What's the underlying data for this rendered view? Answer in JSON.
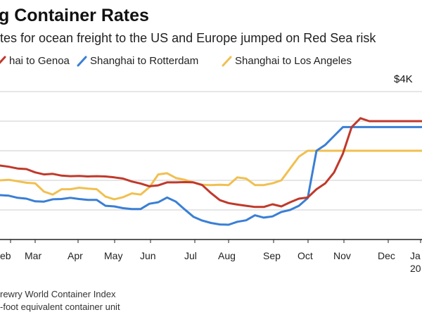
{
  "title": "g Container Rates",
  "subtitle": "tes for ocean freight to the US and Europe jumped on Red Sea risk",
  "colors": {
    "genoa": "#c0392b",
    "rotterdam": "#3a7fd5",
    "los_angeles": "#f0c050",
    "grid": "#dddddd"
  },
  "legend": [
    {
      "label": "hai to Genoa",
      "color": "#c0392b"
    },
    {
      "label": "Shanghai to Rotterdam",
      "color": "#3a7fd5"
    },
    {
      "label": "Shanghai to Los Angeles",
      "color": "#f0c050"
    }
  ],
  "footnote": {
    "line1": "rewry World Container Index",
    "line2": "-foot equivalent container unit"
  },
  "chart_data": {
    "type": "line",
    "title": "g Container Rates",
    "subtitle": "tes for ocean freight to the US and Europe jumped on Red Sea risk",
    "annotation": "$4K",
    "x_tick_labels": [
      "eb",
      "Mar",
      "Apr",
      "May",
      "Jun",
      "Jul",
      "Aug",
      "Sep",
      "Oct",
      "Nov",
      "Dec",
      "Ja",
      "20"
    ],
    "ylim": [
      0,
      5000
    ],
    "grid": true,
    "legend_placement": "top",
    "x": [
      0,
      1,
      2,
      3,
      4,
      5,
      6,
      7,
      8,
      9,
      10,
      11,
      12,
      13,
      14,
      15,
      16,
      17,
      18,
      19,
      20,
      21,
      22,
      23,
      24,
      25,
      26,
      27,
      28,
      29,
      30,
      31,
      32,
      33,
      34,
      35,
      36,
      37,
      38,
      39,
      40,
      41,
      42,
      43,
      44,
      45,
      46,
      47,
      48
    ],
    "series": [
      {
        "name": "hai to Genoa",
        "color": "#c0392b",
        "values": [
          2500,
          2460,
          2400,
          2380,
          2270,
          2200,
          2220,
          2160,
          2140,
          2150,
          2130,
          2140,
          2130,
          2100,
          2060,
          1960,
          1890,
          1800,
          1830,
          1930,
          1930,
          1940,
          1930,
          1840,
          1570,
          1330,
          1230,
          1180,
          1140,
          1100,
          1100,
          1190,
          1120,
          1260,
          1380,
          1420,
          1700,
          1900,
          2270,
          2900,
          3800,
          4100,
          4000,
          4000,
          4000,
          4000,
          4000,
          4000,
          4000
        ]
      },
      {
        "name": "Shanghai to Rotterdam",
        "color": "#3a7fd5",
        "values": [
          1500,
          1480,
          1410,
          1380,
          1290,
          1280,
          1360,
          1370,
          1410,
          1370,
          1340,
          1340,
          1140,
          1120,
          1060,
          1030,
          1030,
          1210,
          1260,
          1420,
          1280,
          1020,
          770,
          640,
          560,
          510,
          500,
          600,
          650,
          820,
          740,
          780,
          930,
          1000,
          1140,
          1400,
          3000,
          3200,
          3500,
          3800,
          3800,
          3800,
          3800,
          3800,
          3800,
          3800,
          3800,
          3800,
          3800
        ]
      },
      {
        "name": "Shanghai to Los Angeles",
        "color": "#f0c050",
        "values": [
          2000,
          2020,
          1970,
          1920,
          1900,
          1620,
          1520,
          1700,
          1700,
          1750,
          1720,
          1700,
          1450,
          1360,
          1430,
          1560,
          1520,
          1770,
          2200,
          2240,
          2080,
          2020,
          1930,
          1850,
          1840,
          1850,
          1840,
          2100,
          2060,
          1840,
          1840,
          1900,
          2000,
          2400,
          2800,
          3000,
          3000,
          3000,
          3000,
          3000,
          3000,
          3000,
          3000,
          3000,
          3000,
          3000,
          3000,
          3000,
          3000
        ]
      }
    ]
  }
}
